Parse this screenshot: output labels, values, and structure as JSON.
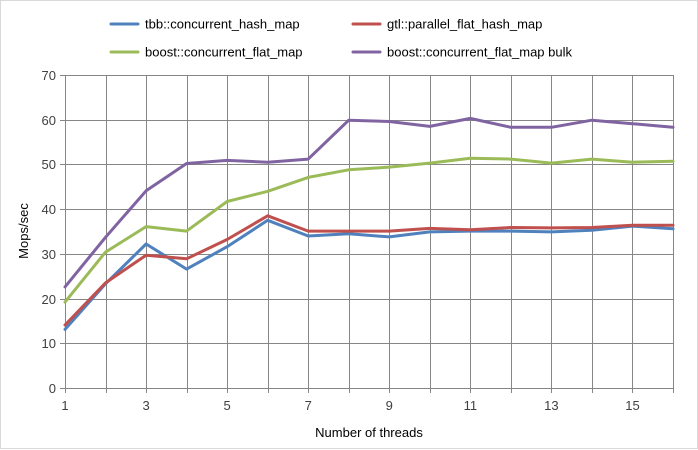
{
  "chart_data": {
    "type": "line",
    "title": "",
    "xlabel": "Number of threads",
    "ylabel": "Mops/sec",
    "xlim": [
      1,
      16
    ],
    "ylim": [
      0,
      70
    ],
    "y_ticks": [
      0,
      10,
      20,
      30,
      40,
      50,
      60,
      70
    ],
    "x_tick_labels": [
      "1",
      "3",
      "5",
      "7",
      "9",
      "11",
      "13",
      "15"
    ],
    "x_tick_values": [
      1,
      3,
      5,
      7,
      9,
      11,
      13,
      15
    ],
    "grid": true,
    "legend_position": "top",
    "x": [
      1,
      2,
      3,
      4,
      5,
      6,
      7,
      8,
      9,
      10,
      11,
      12,
      13,
      14,
      15,
      16
    ],
    "series": [
      {
        "name": "tbb::concurrent_hash_map",
        "color": "#4f81bd",
        "values": [
          13.1,
          23.3,
          32.2,
          26.6,
          31.6,
          37.5,
          34.0,
          34.5,
          33.8,
          34.9,
          35.1,
          35.1,
          34.9,
          35.3,
          36.2,
          35.6
        ]
      },
      {
        "name": "gtl::parallel_flat_hash_map",
        "color": "#c0504d",
        "values": [
          14.1,
          23.5,
          29.7,
          28.9,
          33.2,
          38.5,
          35.1,
          35.1,
          35.1,
          35.7,
          35.4,
          35.9,
          35.8,
          35.9,
          36.4,
          36.4
        ]
      },
      {
        "name": "boost::concurrent_flat_map",
        "color": "#9bbb59",
        "values": [
          19.2,
          30.4,
          36.1,
          35.1,
          41.7,
          44.0,
          47.1,
          48.8,
          49.4,
          50.3,
          51.4,
          51.2,
          50.3,
          51.2,
          50.5,
          50.7
        ]
      },
      {
        "name": "boost::concurrent_flat_map bulk",
        "color": "#8064a2",
        "values": [
          22.6,
          33.7,
          44.1,
          50.2,
          50.9,
          50.5,
          51.2,
          59.9,
          59.6,
          58.5,
          60.3,
          58.3,
          58.3,
          59.9,
          59.1,
          58.3
        ]
      }
    ]
  }
}
